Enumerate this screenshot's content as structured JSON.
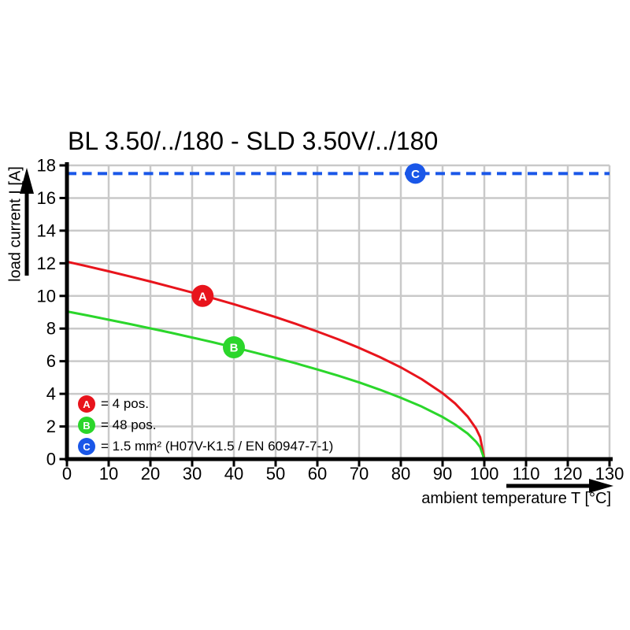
{
  "title": "BL 3.50/../180 - SLD 3.50V/../180",
  "colors": {
    "red": "#e8141c",
    "green": "#2bd62b",
    "blue": "#1a57e8",
    "grid": "#c9c9c9",
    "axis": "#000000",
    "marker_text": "#ffffff"
  },
  "legend": {
    "items": [
      {
        "key": "A",
        "label": "= 4 pos."
      },
      {
        "key": "B",
        "label": "= 48 pos."
      },
      {
        "key": "C",
        "label": "= 1.5 mm² (H07V-K1.5 / EN 60947-7-1)"
      }
    ]
  },
  "chart_data": {
    "type": "line",
    "title": "BL 3.50/../180 - SLD 3.50V/../180",
    "xlabel": "ambient temperature T [°C]",
    "ylabel": "load current I [A]",
    "xlim": [
      0,
      130
    ],
    "ylim": [
      0,
      18
    ],
    "xticks": [
      0,
      10,
      20,
      30,
      40,
      50,
      60,
      70,
      80,
      90,
      100,
      110,
      120,
      130
    ],
    "yticks": [
      0,
      2,
      4,
      6,
      8,
      10,
      12,
      14,
      16,
      18
    ],
    "grid": true,
    "legend_position": "inside-bottom-left",
    "series": [
      {
        "name": "A",
        "label": "= 4 pos.",
        "color": "#e8141c",
        "style": "solid",
        "x": [
          0,
          5,
          10,
          15,
          20,
          25,
          30,
          35,
          40,
          45,
          50,
          55,
          60,
          65,
          70,
          75,
          80,
          85,
          90,
          93,
          96,
          98,
          99,
          100
        ],
        "y": [
          12.1,
          11.81,
          11.51,
          11.2,
          10.88,
          10.55,
          10.21,
          9.86,
          9.49,
          9.1,
          8.7,
          8.27,
          7.82,
          7.34,
          6.82,
          6.25,
          5.62,
          4.9,
          4.04,
          3.41,
          2.61,
          1.88,
          1.35,
          0
        ],
        "marker": {
          "letter": "A",
          "x": 32.5,
          "y": 10.0
        }
      },
      {
        "name": "B",
        "label": "= 48 pos.",
        "color": "#2bd62b",
        "style": "solid",
        "x": [
          0,
          5,
          10,
          15,
          20,
          25,
          30,
          35,
          40,
          45,
          50,
          55,
          60,
          65,
          70,
          75,
          80,
          85,
          90,
          93,
          96,
          98,
          99,
          100
        ],
        "y": [
          9.05,
          8.8,
          8.54,
          8.28,
          8.01,
          7.74,
          7.45,
          7.16,
          6.85,
          6.53,
          6.2,
          5.86,
          5.49,
          5.11,
          4.7,
          4.25,
          3.76,
          3.22,
          2.58,
          2.12,
          1.57,
          1.07,
          0.74,
          0
        ],
        "marker": {
          "letter": "B",
          "x": 40,
          "y": 6.85
        }
      },
      {
        "name": "C",
        "label": "= 1.5 mm² (H07V-K1.5 / EN 60947-7-1)",
        "color": "#1a57e8",
        "style": "dashed",
        "x": [
          0,
          130
        ],
        "y": [
          17.5,
          17.5
        ],
        "marker": {
          "letter": "C",
          "x": 83.5,
          "y": 17.5
        }
      }
    ]
  }
}
